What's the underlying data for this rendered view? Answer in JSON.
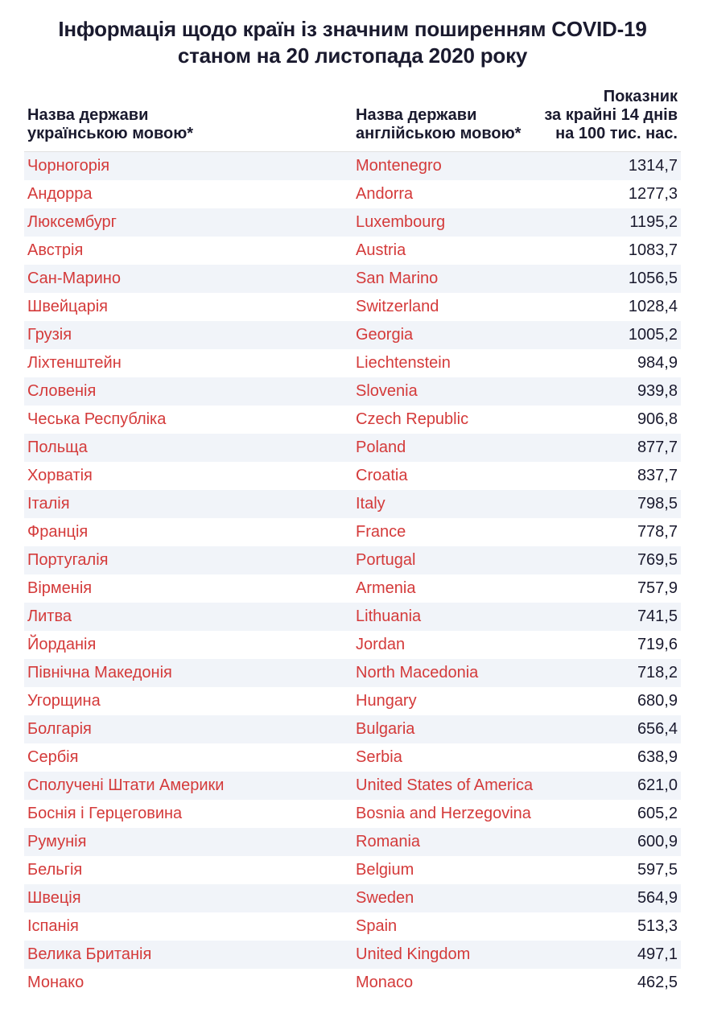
{
  "title_line1": "Інформація щодо країн із значним поширенням COVID-19",
  "title_line2": "станом на 20 листопада 2020 року",
  "colors": {
    "background": "#ffffff",
    "row_alt": "#f1f4f9",
    "text_main": "#1a1a2e",
    "text_highlight": "#d43a3a"
  },
  "typography": {
    "title_fontsize": 26,
    "title_fontweight": 700,
    "header_fontsize": 20,
    "header_fontweight": 700,
    "cell_fontsize": 20,
    "cell_fontweight": 400
  },
  "table": {
    "type": "table",
    "columns": [
      {
        "key": "ua",
        "label": "Назва держави\nукраїнською мовою*",
        "align": "left",
        "color": "#d43a3a"
      },
      {
        "key": "en",
        "label": "Назва держави\nанглійською мовою*",
        "align": "left",
        "color": "#d43a3a"
      },
      {
        "key": "val",
        "label": "Показник\nза крайні 14 днів\nна 100 тис. нас.",
        "align": "right",
        "color": "#1a1a2e"
      }
    ],
    "rows": [
      {
        "ua": "Чорногорія",
        "en": "Montenegro",
        "val": "1314,7"
      },
      {
        "ua": "Андорра",
        "en": "Andorra",
        "val": "1277,3"
      },
      {
        "ua": "Люксембург",
        "en": "Luxembourg",
        "val": "1195,2"
      },
      {
        "ua": "Австрія",
        "en": "Austria",
        "val": "1083,7"
      },
      {
        "ua": "Сан-Марино",
        "en": "San Marino",
        "val": "1056,5"
      },
      {
        "ua": "Швейцарія",
        "en": "Switzerland",
        "val": "1028,4"
      },
      {
        "ua": "Грузія",
        "en": "Georgia",
        "val": "1005,2"
      },
      {
        "ua": "Ліхтенштейн",
        "en": "Liechtenstein",
        "val": "984,9"
      },
      {
        "ua": "Словенія",
        "en": "Slovenia",
        "val": "939,8"
      },
      {
        "ua": "Чеська Республіка",
        "en": "Czech Republic",
        "val": "906,8"
      },
      {
        "ua": "Польща",
        "en": "Poland",
        "val": "877,7"
      },
      {
        "ua": "Хорватія",
        "en": "Croatia",
        "val": "837,7"
      },
      {
        "ua": "Італія",
        "en": "Italy",
        "val": "798,5"
      },
      {
        "ua": "Франція",
        "en": "France",
        "val": "778,7"
      },
      {
        "ua": "Португалія",
        "en": "Portugal",
        "val": "769,5"
      },
      {
        "ua": "Вірменія",
        "en": "Armenia",
        "val": "757,9"
      },
      {
        "ua": "Литва",
        "en": "Lithuania",
        "val": "741,5"
      },
      {
        "ua": "Йорданія",
        "en": "Jordan",
        "val": "719,6"
      },
      {
        "ua": "Північна Македонія",
        "en": "North Macedonia",
        "val": "718,2"
      },
      {
        "ua": "Угорщина",
        "en": "Hungary",
        "val": "680,9"
      },
      {
        "ua": "Болгарія",
        "en": "Bulgaria",
        "val": "656,4"
      },
      {
        "ua": "Сербія",
        "en": "Serbia",
        "val": "638,9"
      },
      {
        "ua": "Сполучені Штати Америки",
        "en": "United States of America",
        "val": "621,0"
      },
      {
        "ua": "Боснія і Герцеговина",
        "en": "Bosnia and Herzegovina",
        "val": "605,2"
      },
      {
        "ua": "Румунія",
        "en": "Romania",
        "val": "600,9"
      },
      {
        "ua": "Бельгія",
        "en": "Belgium",
        "val": "597,5"
      },
      {
        "ua": "Швеція",
        "en": "Sweden",
        "val": "564,9"
      },
      {
        "ua": "Іспанія",
        "en": "Spain",
        "val": "513,3"
      },
      {
        "ua": "Велика Британія",
        "en": "United Kingdom",
        "val": "497,1"
      },
      {
        "ua": "Монако",
        "en": "Monaco",
        "val": "462,5"
      }
    ]
  }
}
